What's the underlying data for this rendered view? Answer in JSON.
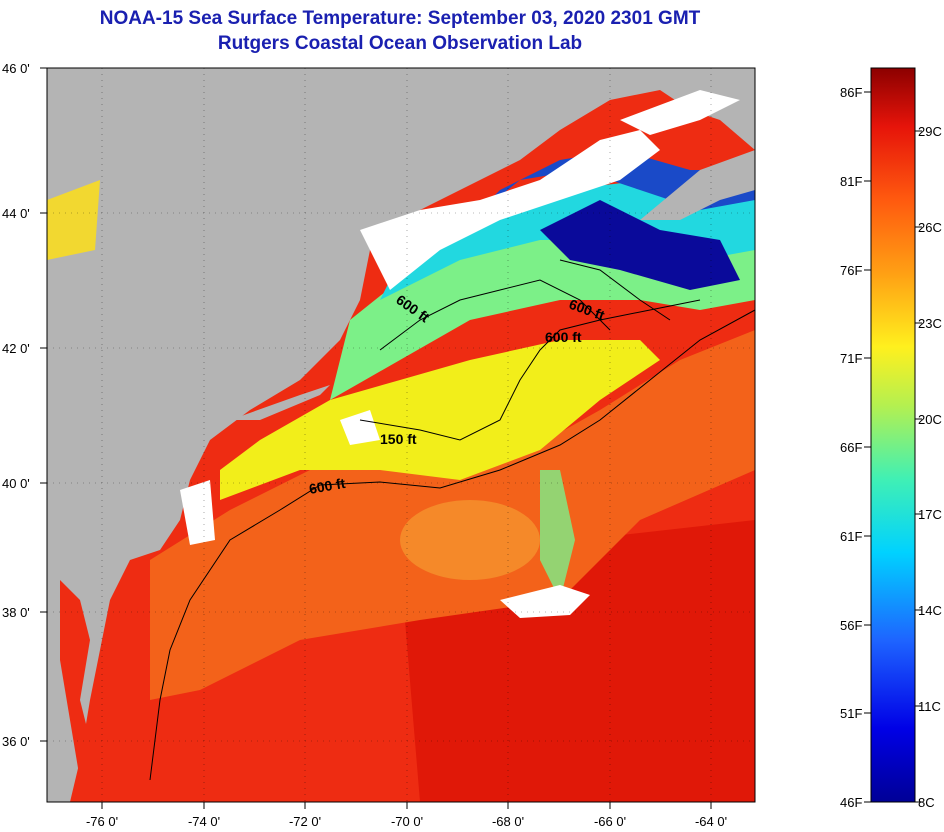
{
  "title": {
    "line1": "NOAA-15 Sea Surface Temperature:  September 03, 2020 2301 GMT",
    "line2": "Rutgers Coastal Ocean Observation Lab"
  },
  "map": {
    "lat_labels": [
      "46 0'",
      "44 0'",
      "42 0'",
      "40 0'",
      "38 0'",
      "36 0'"
    ],
    "lon_labels": [
      "-76 0'",
      "-74 0'",
      "-72 0'",
      "-70 0'",
      "-68 0'",
      "-66 0'",
      "-64 0'"
    ],
    "contour_labels": [
      "600 ft",
      "600 ft",
      "600 ft",
      "150 ft",
      "600 ft"
    ],
    "colors": {
      "land": "#b4b4b4",
      "cloud": "#ffffff",
      "warm": "#ef2a10",
      "orange": "#f47a18",
      "yellow": "#f2ee1a",
      "green": "#7cf088",
      "cyan": "#22d8e0",
      "blue": "#1a4ac8",
      "navy": "#0a0a9a"
    }
  },
  "colorbar": {
    "fahrenheit_labels": [
      "86F",
      "81F",
      "76F",
      "71F",
      "66F",
      "61F",
      "56F",
      "51F",
      "46F"
    ],
    "celsius_labels": [
      "29C",
      "26C",
      "23C",
      "20C",
      "17C",
      "14C",
      "11C",
      "8C"
    ],
    "range_f": [
      46,
      88
    ],
    "range_c": [
      8,
      31
    ]
  }
}
